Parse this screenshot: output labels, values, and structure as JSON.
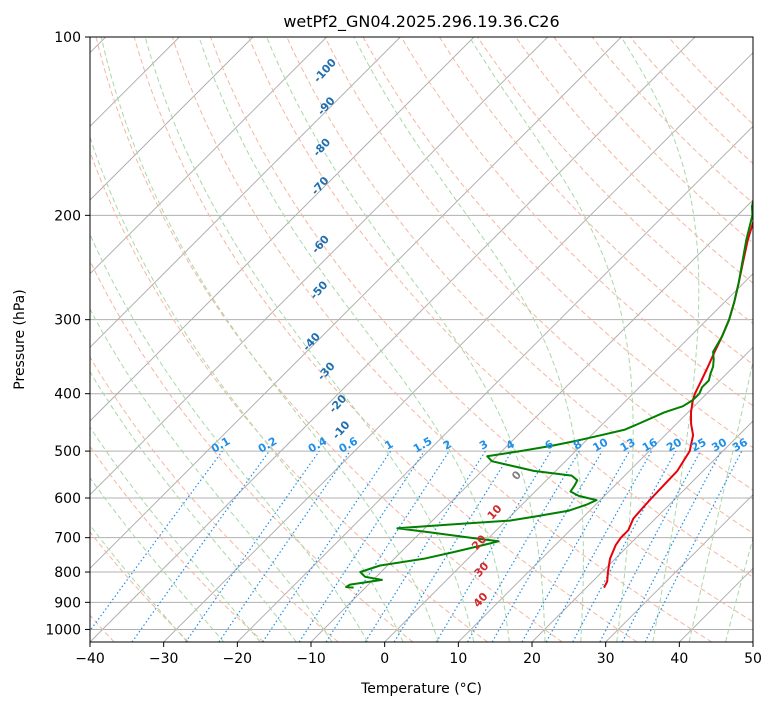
{
  "chart_data": {
    "type": "line",
    "title": "wetPf2_GN04.2025.296.19.36.C26",
    "xlabel": "Temperature (°C)",
    "ylabel": "Pressure (hPa)",
    "xlim": [
      -40,
      50
    ],
    "ylim": [
      1050,
      100
    ],
    "y_scale": "log",
    "x_ticks": [
      "−40",
      "−30",
      "−20",
      "−10",
      "0",
      "10",
      "20",
      "30",
      "40",
      "50"
    ],
    "x_tick_values": [
      -40,
      -30,
      -20,
      -10,
      0,
      10,
      20,
      30,
      40,
      50
    ],
    "y_ticks": [
      "100",
      "200",
      "300",
      "400",
      "500",
      "600",
      "700",
      "800",
      "900",
      "1000"
    ],
    "y_tick_values": [
      100,
      200,
      300,
      400,
      500,
      600,
      700,
      800,
      900,
      1000
    ],
    "grid": true,
    "series": [
      {
        "color": "#e8000b",
        "points": [
          [
            22.4,
            850
          ],
          [
            22.0,
            830
          ],
          [
            20.8,
            800
          ],
          [
            19.3,
            760
          ],
          [
            18.2,
            720
          ],
          [
            17.9,
            700
          ],
          [
            17.9,
            680
          ],
          [
            17.0,
            650
          ],
          [
            16.8,
            620
          ],
          [
            16.7,
            600
          ],
          [
            16.6,
            570
          ],
          [
            16.5,
            540
          ],
          [
            15.5,
            500
          ],
          [
            13.8,
            470
          ],
          [
            12.0,
            450
          ],
          [
            10.4,
            430
          ],
          [
            9.0,
            410
          ],
          [
            8.4,
            400
          ],
          [
            7.5,
            380
          ],
          [
            6.5,
            360
          ],
          [
            5.4,
            340
          ],
          [
            4.3,
            320
          ],
          [
            3.0,
            300
          ],
          [
            1.3,
            280
          ],
          [
            -0.7,
            260
          ],
          [
            -2.9,
            240
          ],
          [
            -5.3,
            220
          ],
          [
            -7.6,
            200
          ],
          [
            -9.9,
            185
          ],
          [
            -10.9,
            178
          ],
          [
            -12.0,
            172
          ],
          [
            -13.4,
            165
          ],
          [
            -15.0,
            158
          ],
          [
            -16.2,
            150
          ],
          [
            -18.5,
            140
          ],
          [
            -19.8,
            133
          ],
          [
            -20.5,
            125
          ],
          [
            -22.0,
            115
          ],
          [
            -23.8,
            106
          ],
          [
            -24.8,
            100
          ]
        ]
      },
      {
        "color": "#008000",
        "points": [
          [
            -11.6,
            850
          ],
          [
            -12.7,
            848
          ],
          [
            -12.5,
            840
          ],
          [
            -8.8,
            825
          ],
          [
            -11.5,
            815
          ],
          [
            -12.8,
            800
          ],
          [
            -11.0,
            780
          ],
          [
            -6.0,
            760
          ],
          [
            -2.8,
            740
          ],
          [
            0.3,
            720
          ],
          [
            1.8,
            710
          ],
          [
            -2.5,
            700
          ],
          [
            -9.0,
            685
          ],
          [
            -13.7,
            675
          ],
          [
            -7.0,
            665
          ],
          [
            0.5,
            655
          ],
          [
            3.3,
            645
          ],
          [
            7.2,
            630
          ],
          [
            8.8,
            615
          ],
          [
            9.5,
            605
          ],
          [
            6.5,
            595
          ],
          [
            4.8,
            585
          ],
          [
            4.5,
            570
          ],
          [
            4.2,
            560
          ],
          [
            2.8,
            550
          ],
          [
            -3.0,
            540
          ],
          [
            -10.0,
            520
          ],
          [
            -11.3,
            510
          ],
          [
            -7.5,
            500
          ],
          [
            -4.0,
            490
          ],
          [
            -1.2,
            480
          ],
          [
            1.3,
            470
          ],
          [
            3.8,
            460
          ],
          [
            4.8,
            450
          ],
          [
            5.8,
            440
          ],
          [
            6.8,
            430
          ],
          [
            8.5,
            420
          ],
          [
            9.0,
            410
          ],
          [
            9.0,
            400
          ],
          [
            8.5,
            390
          ],
          [
            8.5,
            380
          ],
          [
            7.8,
            370
          ],
          [
            7.2,
            360
          ],
          [
            6.3,
            350
          ],
          [
            5.2,
            340
          ],
          [
            4.3,
            320
          ],
          [
            3.0,
            300
          ],
          [
            1.3,
            280
          ],
          [
            -0.7,
            260
          ],
          [
            -3.0,
            240
          ],
          [
            -5.5,
            220
          ],
          [
            -8.0,
            200
          ],
          [
            -9.3,
            193
          ],
          [
            -10.0,
            188
          ],
          [
            -10.5,
            180
          ],
          [
            -10.0,
            175
          ],
          [
            -8.5,
            170
          ],
          [
            -7.0,
            165
          ],
          [
            -6.8,
            160
          ],
          [
            -6.5,
            155
          ],
          [
            -6.0,
            150
          ],
          [
            -5.8,
            140
          ],
          [
            -5.5,
            130
          ],
          [
            -5.0,
            125
          ],
          [
            -4.0,
            120
          ],
          [
            -2.5,
            115
          ],
          [
            -1.0,
            110
          ],
          [
            0.5,
            105
          ],
          [
            1.5,
            100
          ]
        ]
      }
    ],
    "mixing_ratio_labels": [
      "0.1",
      "0.2",
      "0.4",
      "0.6",
      "1",
      "1.5",
      "2",
      "3",
      "4",
      "6",
      "8",
      "10",
      "13",
      "16",
      "20",
      "25",
      "30",
      "36"
    ],
    "dry_adiabat_labels": [
      "-100",
      "-90",
      "-80",
      "-70",
      "-60",
      "-50",
      "-40",
      "-30",
      "-20",
      "-10"
    ],
    "moist_adiabat_labels": [
      "0",
      "10",
      "20",
      "30",
      "40"
    ],
    "colors": {
      "temperature": "#e8000b",
      "dewpoint": "#008000",
      "mixing_ratio": "#1f8fe8",
      "dry_adiabat_label": "#1f6fb0",
      "moist_adiabat_label": "#d62728",
      "moist_zero_label": "#7f7f7f",
      "dry_adiabat_line": "#f5b6a0",
      "moist_adiabat_line": "#a8d8a8",
      "isotherm": "#b0b0b0"
    }
  }
}
